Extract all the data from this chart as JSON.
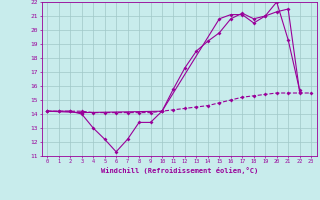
{
  "xlabel": "Windchill (Refroidissement éolien,°C)",
  "bg_color": "#c8ecec",
  "grid_color": "#a0c8c8",
  "line_color": "#990099",
  "xlim": [
    -0.5,
    23.5
  ],
  "ylim": [
    11,
    22
  ],
  "xticks": [
    0,
    1,
    2,
    3,
    4,
    5,
    6,
    7,
    8,
    9,
    10,
    11,
    12,
    13,
    14,
    15,
    16,
    17,
    18,
    19,
    20,
    21,
    22,
    23
  ],
  "yticks": [
    11,
    12,
    13,
    14,
    15,
    16,
    17,
    18,
    19,
    20,
    21,
    22
  ],
  "line1_x": [
    0,
    1,
    2,
    3,
    4,
    5,
    6,
    7,
    8,
    9,
    10,
    11,
    12,
    13,
    14,
    15,
    16,
    17,
    18,
    19,
    20,
    21,
    22
  ],
  "line1_y": [
    14.2,
    14.2,
    14.2,
    14.0,
    13.0,
    12.2,
    11.3,
    12.2,
    13.4,
    13.4,
    14.2,
    15.8,
    17.3,
    18.5,
    19.2,
    19.8,
    20.8,
    21.2,
    20.8,
    21.0,
    22.0,
    19.3,
    15.7
  ],
  "line2_x": [
    0,
    1,
    2,
    3,
    4,
    5,
    6,
    7,
    8,
    9,
    10,
    11,
    12,
    13,
    14,
    15,
    16,
    17,
    18,
    19,
    20,
    21,
    22,
    23
  ],
  "line2_y": [
    14.2,
    14.2,
    14.2,
    14.2,
    14.1,
    14.1,
    14.1,
    14.1,
    14.1,
    14.1,
    14.2,
    14.3,
    14.4,
    14.5,
    14.6,
    14.8,
    15.0,
    15.2,
    15.3,
    15.4,
    15.5,
    15.5,
    15.5,
    15.5
  ],
  "line3_x": [
    0,
    3,
    10,
    15,
    16,
    17,
    18,
    19,
    20,
    21,
    22
  ],
  "line3_y": [
    14.2,
    14.1,
    14.2,
    20.8,
    21.1,
    21.1,
    20.5,
    21.0,
    21.3,
    21.5,
    15.6
  ]
}
